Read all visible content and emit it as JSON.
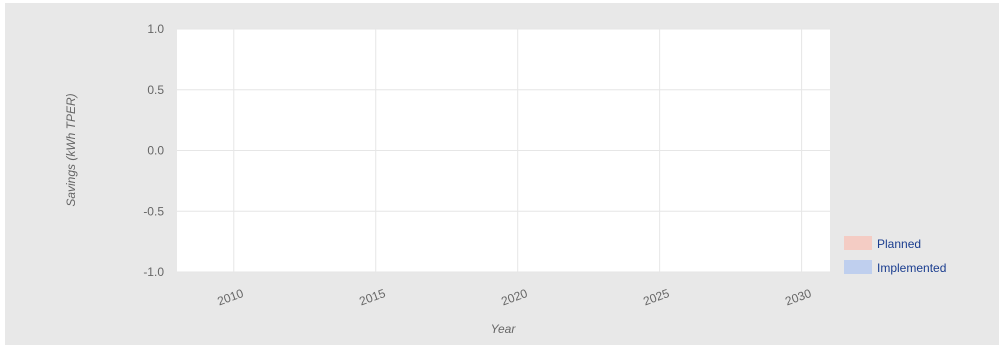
{
  "chart_data": {
    "type": "area",
    "title": "",
    "xlabel": "Year",
    "ylabel": "Savings (kWh TPER)",
    "x_ticks": [
      2010,
      2015,
      2020,
      2025,
      2030
    ],
    "y_ticks": [
      1.0,
      0.5,
      0.0,
      -0.5,
      -1.0
    ],
    "y_tick_labels": [
      "1.0",
      "0.5",
      "0.0",
      "-0.5",
      "-1.0"
    ],
    "xlim": [
      2008,
      2031
    ],
    "ylim": [
      -1.0,
      1.0
    ],
    "grid": true,
    "legend_position": "right-bottom",
    "series": [
      {
        "name": "Planned",
        "color": "#f4ccc4",
        "values": []
      },
      {
        "name": "Implemented",
        "color": "#bfcfee",
        "values": []
      }
    ]
  },
  "colors": {
    "outer_background": "#e8e8e8",
    "plot_background": "#ffffff",
    "grid": "#e6e6e6",
    "legend_text": "#1a3d8f"
  }
}
